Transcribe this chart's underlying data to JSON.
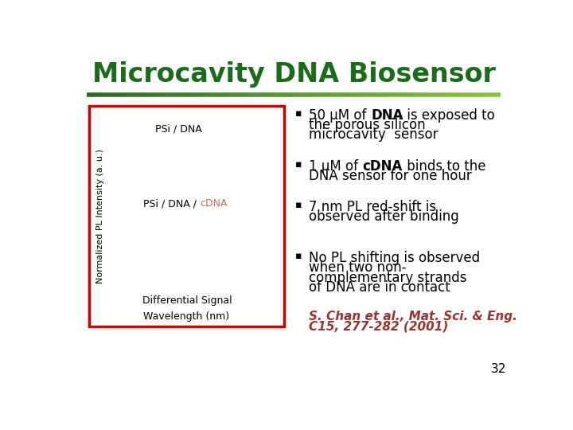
{
  "title": "Microcavity DNA Biosensor",
  "title_color": "#1a6b1a",
  "title_fontsize": 24,
  "bg_color": "#ffffff",
  "separator_color_left": "#2d6a2d",
  "separator_color_right": "#8dc63f",
  "box_border_color": "#cc0000",
  "ylabel": "Normalized PL Intensity (a. u.)",
  "xlabel": "Wavelength (nm)",
  "label1": "PSi / DNA",
  "label2_prefix": "PSi / DNA / ",
  "label2_cdna": "cDNA",
  "label2_cdna_color": "#cc6666",
  "label3": "Differential Signal",
  "bullet_char": "▪",
  "bullets": [
    {
      "lines": [
        {
          "parts": [
            {
              "t": "50 μM of ",
              "b": false
            },
            {
              "t": "DNA",
              "b": true
            },
            {
              "t": " is exposed to",
              "b": false
            }
          ]
        },
        {
          "parts": [
            {
              "t": "the porous silicon",
              "b": false
            }
          ]
        },
        {
          "parts": [
            {
              "t": "microcavity  sensor",
              "b": false
            }
          ]
        }
      ]
    },
    {
      "lines": [
        {
          "parts": [
            {
              "t": "1 μM of ",
              "b": false
            },
            {
              "t": "cDNA",
              "b": true
            },
            {
              "t": " binds to the",
              "b": false
            }
          ]
        },
        {
          "parts": [
            {
              "t": "DNA sensor for one hour",
              "b": false
            }
          ]
        }
      ]
    },
    {
      "lines": [
        {
          "parts": [
            {
              "t": "7 nm PL red-shift is",
              "b": false
            }
          ]
        },
        {
          "parts": [
            {
              "t": "observed after binding",
              "b": false
            }
          ]
        }
      ]
    },
    {
      "lines": [
        {
          "parts": [
            {
              "t": "No PL shifting is observed",
              "b": false
            }
          ]
        },
        {
          "parts": [
            {
              "t": "when two non-",
              "b": false
            }
          ]
        },
        {
          "parts": [
            {
              "t": "complementary strands",
              "b": false
            }
          ]
        },
        {
          "parts": [
            {
              "t": "of DNA are in contact",
              "b": false
            }
          ]
        }
      ]
    }
  ],
  "citation_line1": "S. Chan et al., Mat. Sci. & Eng.",
  "citation_line2": "C15, 277-282 (2001)",
  "citation_color": "#993333",
  "slide_number": "32",
  "text_fontsize": 12,
  "citation_fontsize": 11,
  "ylabel_fontsize": 8,
  "xlabel_fontsize": 9,
  "label_fontsize": 9
}
